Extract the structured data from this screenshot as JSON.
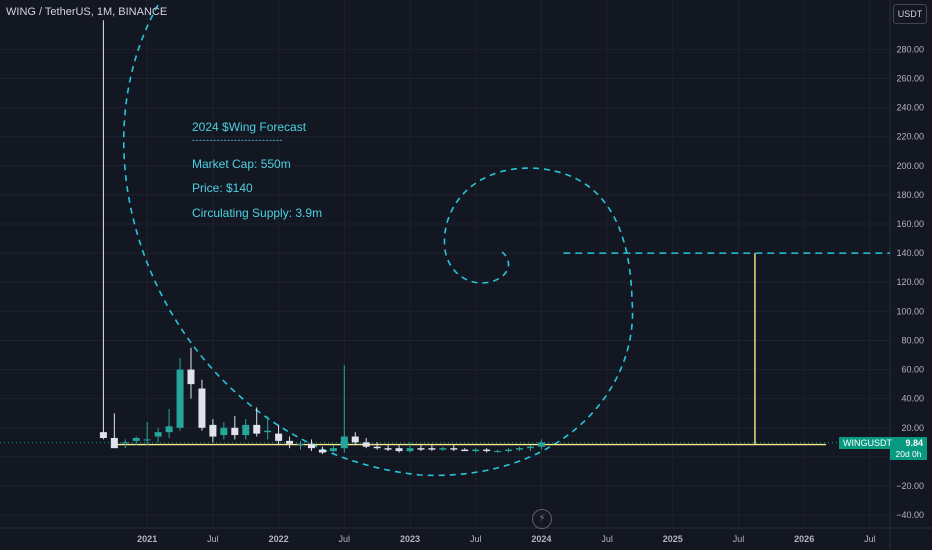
{
  "header": {
    "symbol": "WING / TetherUS, 1M, BINANCE",
    "unit_button": "USDT"
  },
  "annotation": {
    "title": "2024 $Wing Forecast",
    "divider": "--------------------------",
    "lines": [
      "Market Cap: 550m",
      "Price: $140",
      "Circulating Supply: 3.9m"
    ]
  },
  "price_badge": {
    "symbol": "WINGUSDT",
    "value": "9.84",
    "countdown": "20d 0h"
  },
  "colors": {
    "background": "#131722",
    "up": "#26a69a",
    "down": "#e0e3eb",
    "fib_spiral": "#26c6da",
    "horizontal_line": "#f5eb8c"
  },
  "icons": {
    "bottom_logo": "lightning-icon"
  },
  "chart_data": {
    "type": "candlestick",
    "title": "",
    "xlabel": "",
    "ylabel": "",
    "ylim": [
      -45,
      300
    ],
    "yticks": [
      -40,
      -20,
      20,
      40,
      60,
      80,
      100,
      120,
      140,
      160,
      180,
      200,
      220,
      240,
      260,
      280
    ],
    "ytick_labels": [
      "−40.00",
      "−20.00",
      "20.00",
      "40.00",
      "60.00",
      "80.00",
      "100.00",
      "120.00",
      "140.00",
      "160.00",
      "180.00",
      "200.00",
      "220.00",
      "240.00",
      "260.00",
      "280.00"
    ],
    "x_labels": [
      "2021",
      "Jul",
      "2022",
      "Jul",
      "2023",
      "Jul",
      "2024",
      "Jul",
      "2025",
      "Jul",
      "2026",
      "Jul"
    ],
    "x_label_months": [
      6,
      12,
      18,
      24,
      30,
      36,
      42,
      48,
      54,
      60,
      66,
      72
    ],
    "grid": true,
    "candles": [
      {
        "m": 2,
        "o": 17,
        "h": 300,
        "l": 12,
        "c": 13
      },
      {
        "m": 3,
        "o": 13,
        "h": 30,
        "l": 8,
        "c": 6
      },
      {
        "m": 4,
        "o": 10,
        "h": 12,
        "l": 6,
        "c": 10
      },
      {
        "m": 5,
        "o": 11,
        "h": 14,
        "l": 8,
        "c": 13
      },
      {
        "m": 6,
        "o": 12,
        "h": 24,
        "l": 8,
        "c": 12
      },
      {
        "m": 7,
        "o": 14,
        "h": 20,
        "l": 10,
        "c": 17
      },
      {
        "m": 8,
        "o": 17,
        "h": 33,
        "l": 13,
        "c": 21
      },
      {
        "m": 9,
        "o": 20,
        "h": 68,
        "l": 18,
        "c": 60
      },
      {
        "m": 10,
        "o": 60,
        "h": 75,
        "l": 40,
        "c": 50
      },
      {
        "m": 11,
        "o": 47,
        "h": 53,
        "l": 18,
        "c": 20
      },
      {
        "m": 12,
        "o": 22,
        "h": 26,
        "l": 10,
        "c": 14
      },
      {
        "m": 13,
        "o": 15,
        "h": 24,
        "l": 12,
        "c": 20
      },
      {
        "m": 14,
        "o": 20,
        "h": 28,
        "l": 12,
        "c": 15
      },
      {
        "m": 15,
        "o": 15,
        "h": 26,
        "l": 12,
        "c": 22
      },
      {
        "m": 16,
        "o": 22,
        "h": 34,
        "l": 14,
        "c": 16
      },
      {
        "m": 17,
        "o": 17,
        "h": 28,
        "l": 12,
        "c": 18
      },
      {
        "m": 18,
        "o": 16,
        "h": 22,
        "l": 8,
        "c": 11
      },
      {
        "m": 19,
        "o": 11,
        "h": 14,
        "l": 6,
        "c": 9
      },
      {
        "m": 20,
        "o": 9,
        "h": 11,
        "l": 5,
        "c": 9
      },
      {
        "m": 21,
        "o": 9,
        "h": 12,
        "l": 4,
        "c": 6
      },
      {
        "m": 22,
        "o": 5,
        "h": 7,
        "l": 2,
        "c": 3
      },
      {
        "m": 23,
        "o": 4,
        "h": 8,
        "l": 3,
        "c": 6
      },
      {
        "m": 24,
        "o": 6,
        "h": 63,
        "l": 3,
        "c": 14
      },
      {
        "m": 25,
        "o": 14,
        "h": 17,
        "l": 8,
        "c": 10
      },
      {
        "m": 26,
        "o": 10,
        "h": 13,
        "l": 6,
        "c": 7
      },
      {
        "m": 27,
        "o": 7,
        "h": 10,
        "l": 5,
        "c": 6
      },
      {
        "m": 28,
        "o": 6,
        "h": 8,
        "l": 4,
        "c": 5
      },
      {
        "m": 29,
        "o": 6,
        "h": 8,
        "l": 3,
        "c": 4
      },
      {
        "m": 30,
        "o": 4,
        "h": 10,
        "l": 3,
        "c": 6
      },
      {
        "m": 31,
        "o": 6,
        "h": 8,
        "l": 4,
        "c": 5
      },
      {
        "m": 32,
        "o": 6,
        "h": 8,
        "l": 4,
        "c": 5
      },
      {
        "m": 33,
        "o": 5,
        "h": 7,
        "l": 4,
        "c": 6
      },
      {
        "m": 34,
        "o": 6,
        "h": 8,
        "l": 4,
        "c": 5
      },
      {
        "m": 35,
        "o": 5,
        "h": 6,
        "l": 4,
        "c": 4
      },
      {
        "m": 36,
        "o": 4,
        "h": 6,
        "l": 3,
        "c": 5
      },
      {
        "m": 37,
        "o": 5,
        "h": 6,
        "l": 3,
        "c": 4
      },
      {
        "m": 38,
        "o": 4,
        "h": 5,
        "l": 3,
        "c": 4
      },
      {
        "m": 39,
        "o": 4,
        "h": 6,
        "l": 3,
        "c": 5
      },
      {
        "m": 40,
        "o": 5,
        "h": 7,
        "l": 4,
        "c": 6
      },
      {
        "m": 41,
        "o": 6,
        "h": 8,
        "l": 4,
        "c": 7
      },
      {
        "m": 42,
        "o": 7,
        "h": 12,
        "l": 5,
        "c": 10
      }
    ],
    "support_line": {
      "value": 8.5,
      "from_month": 3,
      "to_month": 68
    },
    "target_line": {
      "value": 140,
      "from_month": 44,
      "to_month": 77
    },
    "target_vertical_month": 61.5,
    "last_price": 9.84
  }
}
